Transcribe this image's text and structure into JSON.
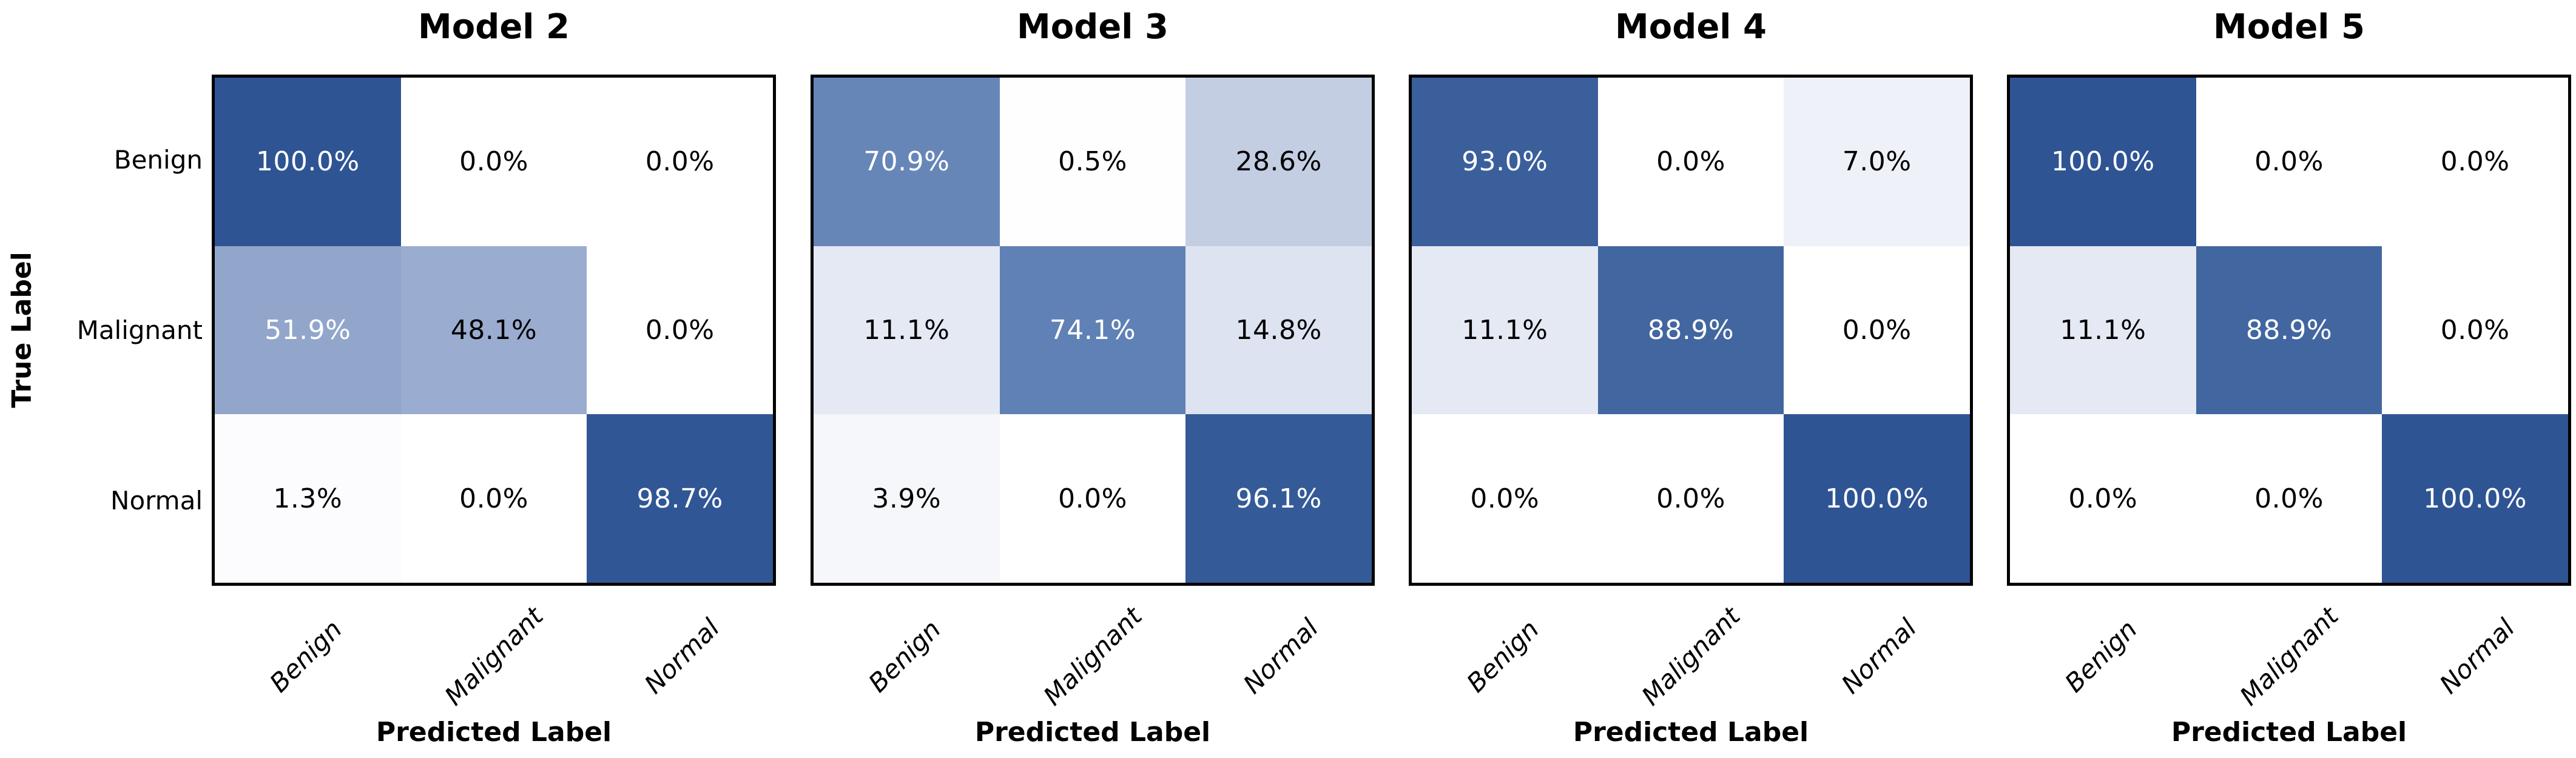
{
  "shared": {
    "ylabel": "True Label",
    "xlabel": "Predicted Label",
    "row_labels": [
      "Benign",
      "Malignant",
      "Normal"
    ],
    "col_labels": [
      "Benign",
      "Malignant",
      "Normal"
    ]
  },
  "style": {
    "background": "#ffffff",
    "spine_color": "#000000",
    "dark_cell_color": "#2e5494",
    "white_text_threshold": 50,
    "colormap_stops": [
      [
        0,
        "#ffffff"
      ],
      [
        10,
        "#e7ebf5"
      ],
      [
        15,
        "#dde3f0"
      ],
      [
        30,
        "#c1cce2"
      ],
      [
        50,
        "#96a9cd"
      ],
      [
        75,
        "#5e7fb4"
      ],
      [
        90,
        "#40649e"
      ],
      [
        100,
        "#2e5494"
      ]
    ]
  },
  "chart_data": [
    {
      "type": "heatmap",
      "title": "Model 2",
      "xlabel": "Predicted Label",
      "ylabel": "True Label",
      "rows": [
        "Benign",
        "Malignant",
        "Normal"
      ],
      "cols": [
        "Benign",
        "Malignant",
        "Normal"
      ],
      "values": [
        [
          100.0,
          0.0,
          0.0
        ],
        [
          51.9,
          48.1,
          0.0
        ],
        [
          1.3,
          0.0,
          98.7
        ]
      ],
      "value_suffix": "%"
    },
    {
      "type": "heatmap",
      "title": "Model 3",
      "xlabel": "Predicted Label",
      "ylabel": "True Label",
      "rows": [
        "Benign",
        "Malignant",
        "Normal"
      ],
      "cols": [
        "Benign",
        "Malignant",
        "Normal"
      ],
      "values": [
        [
          70.9,
          0.5,
          28.6
        ],
        [
          11.1,
          74.1,
          14.8
        ],
        [
          3.9,
          0.0,
          96.1
        ]
      ],
      "value_suffix": "%"
    },
    {
      "type": "heatmap",
      "title": "Model 4",
      "xlabel": "Predicted Label",
      "ylabel": "True Label",
      "rows": [
        "Benign",
        "Malignant",
        "Normal"
      ],
      "cols": [
        "Benign",
        "Malignant",
        "Normal"
      ],
      "values": [
        [
          93.0,
          0.0,
          7.0
        ],
        [
          11.1,
          88.9,
          0.0
        ],
        [
          0.0,
          0.0,
          100.0
        ]
      ],
      "value_suffix": "%"
    },
    {
      "type": "heatmap",
      "title": "Model 5",
      "xlabel": "Predicted Label",
      "ylabel": "True Label",
      "rows": [
        "Benign",
        "Malignant",
        "Normal"
      ],
      "cols": [
        "Benign",
        "Malignant",
        "Normal"
      ],
      "values": [
        [
          100.0,
          0.0,
          0.0
        ],
        [
          11.1,
          88.9,
          0.0
        ],
        [
          0.0,
          0.0,
          100.0
        ]
      ],
      "value_suffix": "%"
    }
  ]
}
